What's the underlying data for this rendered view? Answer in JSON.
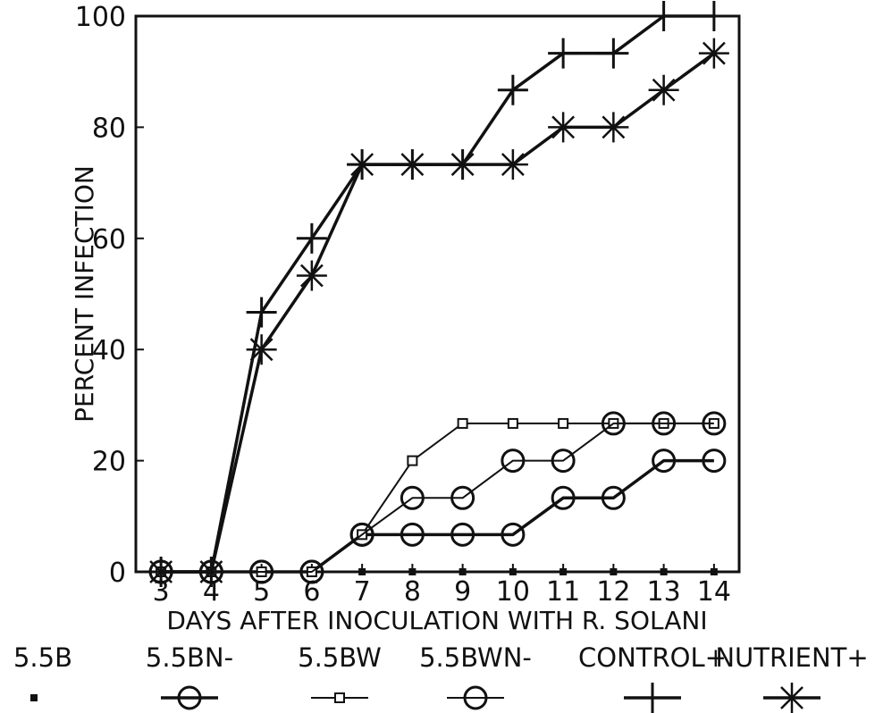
{
  "chart_data": {
    "type": "line",
    "xlabel": "DAYS AFTER INOCULATION WITH R. SOLANI",
    "ylabel": "PERCENT INFECTION",
    "x": [
      3,
      4,
      5,
      6,
      7,
      8,
      9,
      10,
      11,
      12,
      13,
      14
    ],
    "xlim": [
      2.5,
      14.5
    ],
    "ylim": [
      0,
      100
    ],
    "yticks": [
      0,
      20,
      40,
      60,
      80,
      100
    ],
    "grid": false,
    "legend_position": "bottom",
    "series": [
      {
        "name": "5.5B",
        "marker": "filled-square",
        "lineweight": "none",
        "values": [
          0,
          0,
          0,
          0,
          0,
          0,
          0,
          0,
          0,
          0,
          0,
          0
        ]
      },
      {
        "name": "5.5BN-",
        "marker": "large-circle",
        "lineweight": "thick",
        "values": [
          0,
          0,
          0,
          0,
          6.7,
          6.7,
          6.7,
          6.7,
          13.3,
          13.3,
          20,
          20
        ]
      },
      {
        "name": "5.5BW",
        "marker": "small-square",
        "lineweight": "thin",
        "values": [
          0,
          0,
          0,
          0,
          6.7,
          20,
          26.7,
          26.7,
          26.7,
          26.7,
          26.7,
          26.7
        ]
      },
      {
        "name": "5.5BWN-",
        "marker": "large-circle",
        "lineweight": "thin",
        "values": [
          0,
          0,
          0,
          0,
          6.7,
          13.3,
          13.3,
          20,
          20,
          26.7,
          26.7,
          26.7
        ]
      },
      {
        "name": "CONTROL+",
        "marker": "plus",
        "lineweight": "thick",
        "values": [
          0,
          0,
          46.7,
          60,
          73.3,
          73.3,
          73.3,
          86.7,
          93.3,
          93.3,
          100,
          100
        ]
      },
      {
        "name": "NUTRIENT+",
        "marker": "asterisk",
        "lineweight": "thick",
        "values": [
          0,
          0,
          40,
          53.3,
          73.3,
          73.3,
          73.3,
          73.3,
          80,
          80,
          86.7,
          93.3
        ]
      }
    ]
  }
}
